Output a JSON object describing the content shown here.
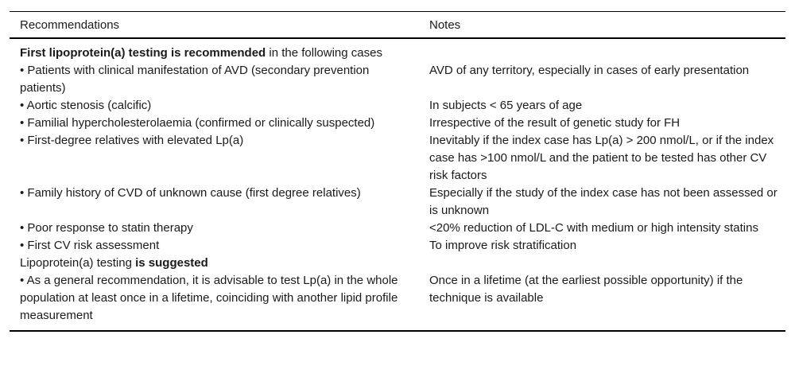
{
  "table": {
    "columns": {
      "recommendations": "Recommendations",
      "notes": "Notes"
    },
    "rows": [
      {
        "rec_bold": "First lipoprotein(a) testing is recommended",
        "rec_rest": " in the following cases",
        "note": ""
      },
      {
        "rec": "• Patients with clinical manifestation of AVD (secondary prevention patients)",
        "note": "AVD of any territory, especially in cases of early presentation"
      },
      {
        "rec": "• Aortic stenosis (calcific)",
        "note": "In subjects < 65 years of age"
      },
      {
        "rec": "• Familial hypercholesterolaemia (confirmed or clinically suspected)",
        "note": "Irrespective of the result of genetic study for FH"
      },
      {
        "rec": "• First-degree relatives with elevated Lp(a)",
        "note": "Inevitably if the index case has Lp(a) > 200 nmol/L, or if the index case has >100 nmol/L and the patient to be tested has other CV risk factors"
      },
      {
        "rec": "• Family history of CVD of unknown cause (first degree relatives)",
        "note": "Especially if the study of the index case has not been assessed or is unknown"
      },
      {
        "rec": "• Poor response to statin therapy",
        "note": "<20% reduction of LDL-C with medium or high intensity statins"
      },
      {
        "rec": "• First CV risk assessment",
        "note": "To improve risk stratification"
      },
      {
        "rec_plain": "Lipoprotein(a) testing ",
        "rec_bold_end": "is suggested",
        "note": ""
      },
      {
        "rec": "• As a general recommendation, it is advisable to test Lp(a) in the whole population at least once in a lifetime, coinciding with another lipid profile measurement",
        "note": "Once in a lifetime (at the earliest possible opportunity) if the technique is available"
      }
    ]
  }
}
